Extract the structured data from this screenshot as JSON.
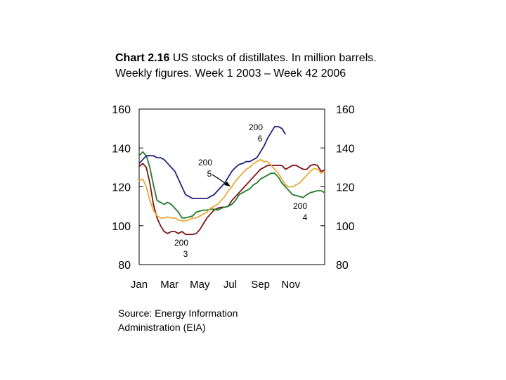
{
  "title": {
    "label": "Chart 2.16",
    "text": " US stocks of distillates. In million barrels. Weekly figures. Week 1 2003 – Week 42 2006"
  },
  "source": "Source: Energy Information Administration (EIA)",
  "chart_data": {
    "type": "line",
    "title": "Chart 2.16 US stocks of distillates. In million barrels. Weekly figures. Week 1 2003 – Week 42 2006",
    "ylim": [
      80,
      160
    ],
    "xlim": [
      1,
      53
    ],
    "y_ticks": [
      80,
      100,
      120,
      140,
      160
    ],
    "y_tick_labels": [
      "80",
      "100",
      "120",
      "140",
      "160"
    ],
    "x_tick_labels": [
      "Jan",
      "Mar",
      "May",
      "Jul",
      "Sep",
      "Nov"
    ],
    "x_tick_positions": [
      1,
      9.5,
      18,
      26.5,
      35,
      43.5
    ],
    "grid": false,
    "x_unit": "week",
    "series": [
      {
        "name": "2003",
        "color": "#7b1414",
        "x": [
          1,
          2,
          3,
          4,
          5,
          6,
          7,
          8,
          9,
          10,
          11,
          12,
          13,
          14,
          15,
          16,
          17,
          18,
          19,
          20,
          21,
          22,
          23,
          24,
          25,
          26,
          27,
          28,
          29,
          30,
          31,
          32,
          33,
          34,
          35,
          36,
          37,
          38,
          39,
          40,
          41,
          42,
          43,
          44,
          45,
          46,
          47,
          48,
          49,
          50,
          51,
          52,
          53
        ],
        "values": [
          130.5,
          132,
          130,
          122,
          111,
          104,
          100,
          97,
          96,
          97,
          97,
          96,
          97,
          95.5,
          95.5,
          95.5,
          96,
          98,
          101,
          104,
          106,
          108,
          109,
          109.5,
          109.5,
          110,
          113,
          115,
          117,
          119,
          121,
          123,
          125,
          127,
          129,
          130,
          131,
          131,
          131,
          131,
          131,
          129,
          130,
          131,
          131,
          130,
          129,
          129,
          131,
          131.5,
          131,
          128,
          128.5
        ]
      },
      {
        "name": "2004",
        "color": "#207a2a",
        "x": [
          1,
          2,
          3,
          4,
          5,
          6,
          7,
          8,
          9,
          10,
          11,
          12,
          13,
          14,
          15,
          16,
          17,
          18,
          19,
          20,
          21,
          22,
          23,
          24,
          25,
          26,
          27,
          28,
          29,
          30,
          31,
          32,
          33,
          34,
          35,
          36,
          37,
          38,
          39,
          40,
          41,
          42,
          43,
          44,
          45,
          46,
          47,
          48,
          49,
          50,
          51,
          52,
          53
        ],
        "values": [
          136,
          138,
          136,
          130,
          121,
          113,
          112,
          111,
          112,
          111,
          109,
          107,
          104,
          104,
          104.5,
          105,
          107,
          107.5,
          108,
          108,
          108.5,
          108.5,
          108,
          109,
          109.5,
          110,
          111,
          113,
          116,
          117,
          118,
          119,
          121,
          122,
          124,
          125,
          126,
          127,
          127,
          125,
          122,
          120,
          118,
          116,
          115.5,
          115,
          114.5,
          116,
          117,
          117.5,
          118,
          118,
          117
        ]
      },
      {
        "name": "2005",
        "color": "#e8a83a",
        "x": [
          1,
          2,
          3,
          4,
          5,
          6,
          7,
          8,
          9,
          10,
          11,
          12,
          13,
          14,
          15,
          16,
          17,
          18,
          19,
          20,
          21,
          22,
          23,
          24,
          25,
          26,
          27,
          28,
          29,
          30,
          31,
          32,
          33,
          34,
          35,
          36,
          37,
          38,
          39,
          40,
          41,
          42,
          43,
          44,
          45,
          46,
          47,
          48,
          49,
          50,
          51,
          52,
          53
        ],
        "values": [
          123,
          124,
          120,
          113,
          108,
          105,
          104,
          104,
          104.5,
          104,
          104,
          103,
          102.5,
          102.5,
          103,
          104,
          104,
          105,
          106,
          107,
          109,
          110,
          111,
          113,
          115,
          118,
          120,
          123,
          125,
          127,
          129,
          130,
          132,
          133,
          134,
          133,
          133,
          131,
          129,
          127,
          124,
          121,
          120,
          120,
          121,
          122,
          124,
          126,
          128,
          129.5,
          129,
          127,
          128
        ]
      },
      {
        "name": "2006",
        "color": "#1f2577",
        "x": [
          1,
          2,
          3,
          4,
          5,
          6,
          7,
          8,
          9,
          10,
          11,
          12,
          13,
          14,
          15,
          16,
          17,
          18,
          19,
          20,
          21,
          22,
          23,
          24,
          25,
          26,
          27,
          28,
          29,
          30,
          31,
          32,
          33,
          34,
          35,
          36,
          37,
          38,
          39,
          40,
          41,
          42
        ],
        "values": [
          132,
          134,
          136,
          136,
          136,
          135,
          135,
          134,
          132,
          130,
          128,
          124,
          120,
          116,
          115,
          114,
          114,
          114,
          114,
          114,
          115,
          116,
          118,
          120,
          122,
          125,
          128,
          130,
          131.5,
          132,
          133,
          133,
          134,
          135,
          138,
          141,
          145,
          148,
          151,
          151,
          150,
          147
        ]
      }
    ],
    "annotations": [
      {
        "text_top": "200",
        "text_bottom": "6",
        "series": "2006"
      },
      {
        "text_top": "200",
        "text_bottom": "5",
        "series": "2005"
      },
      {
        "text_top": "200",
        "text_bottom": "4",
        "series": "2004"
      },
      {
        "text_top": "200",
        "text_bottom": "3",
        "series": "2003"
      }
    ]
  }
}
